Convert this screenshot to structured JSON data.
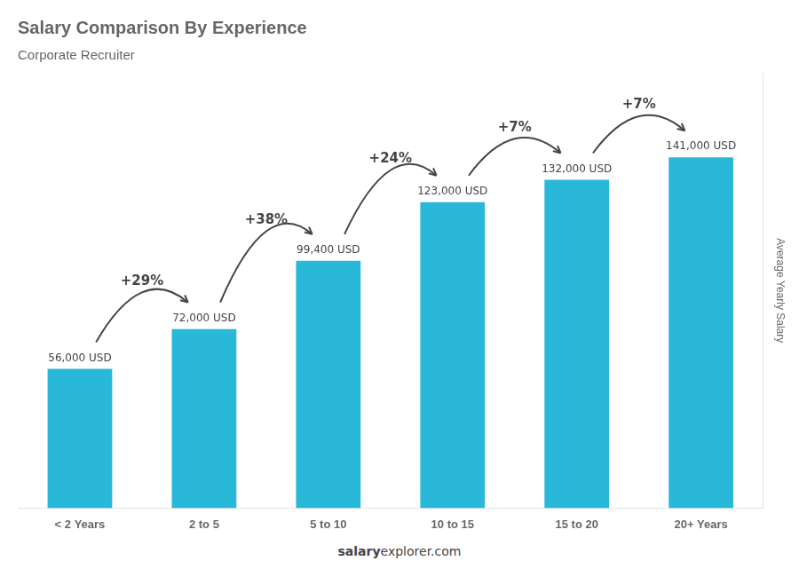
{
  "chart_data": {
    "type": "bar",
    "title": "Salary Comparison By Experience",
    "subtitle": "Corporate Recruiter",
    "categories": [
      "< 2 Years",
      "2 to 5",
      "5 to 10",
      "10 to 15",
      "15 to 20",
      "20+ Years"
    ],
    "values": [
      56000,
      72000,
      99400,
      123000,
      132000,
      141000
    ],
    "value_labels": [
      "56,000 USD",
      "72,000 USD",
      "99,400 USD",
      "123,000 USD",
      "132,000 USD",
      "141,000 USD"
    ],
    "data_labels": true,
    "color": "#29b8d8",
    "ylim": [
      0,
      175000
    ],
    "ylabel": "Average Yearly Salary",
    "tick_labels": "x",
    "grid": false,
    "annotations": [
      {
        "text": "+29%",
        "from": "< 2 Years",
        "to": "2 to 5"
      },
      {
        "text": "+38%",
        "from": "2 to 5",
        "to": "5 to 10"
      },
      {
        "text": "+24%",
        "from": "5 to 10",
        "to": "10 to 15"
      },
      {
        "text": "+7%",
        "from": "10 to 15",
        "to": "15 to 20"
      },
      {
        "text": "+7%",
        "from": "15 to 20",
        "to": "20+ Years"
      }
    ],
    "footer": [
      "salary",
      "explorer.com"
    ]
  }
}
